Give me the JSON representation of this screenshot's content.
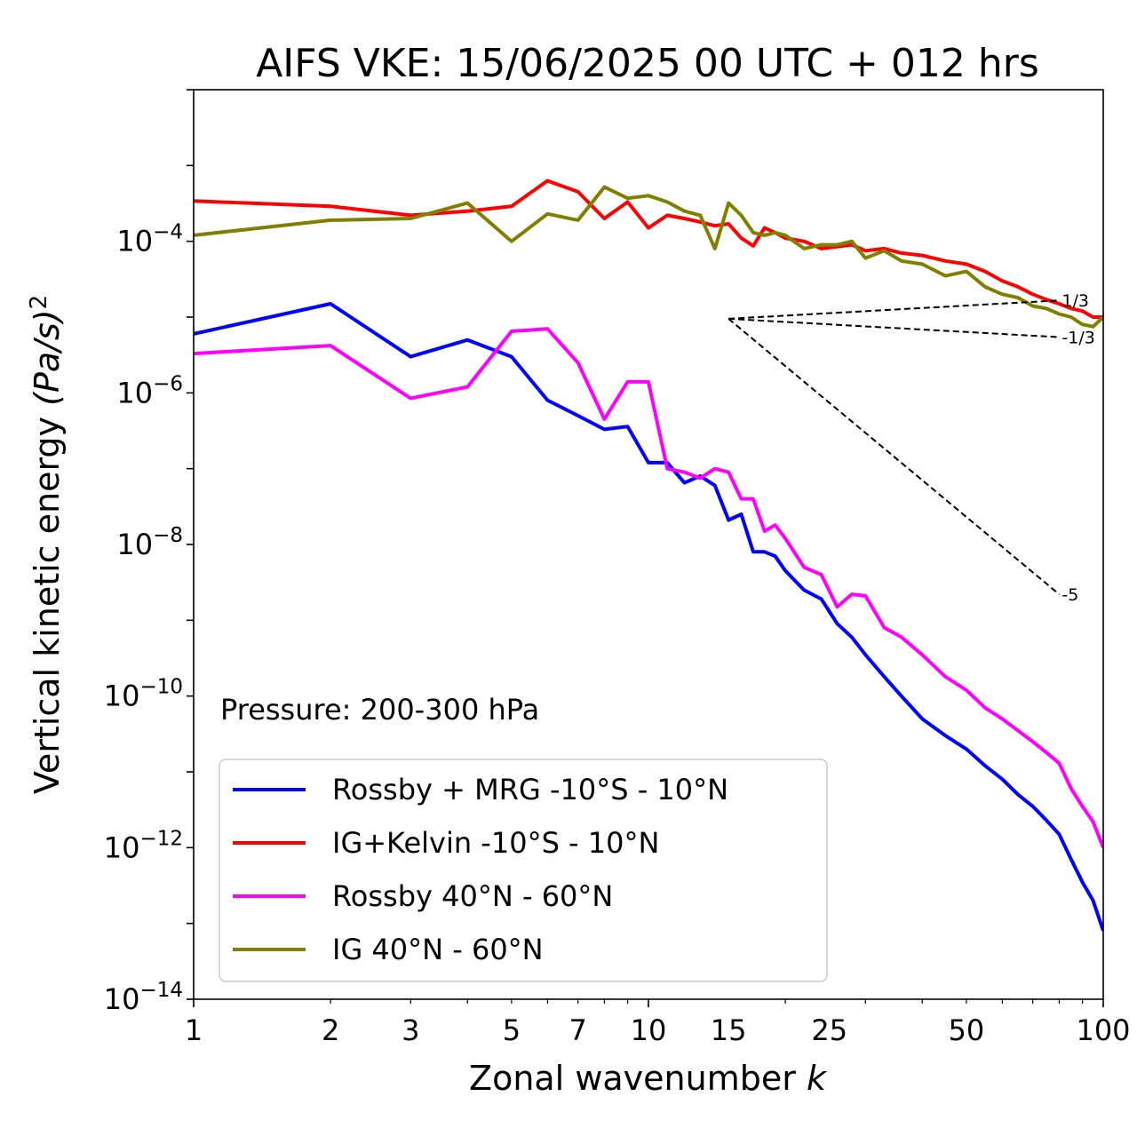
{
  "chart_data": {
    "type": "line",
    "title": "AIFS VKE: 15/06/2025 00 UTC + 012 hrs",
    "xlabel": "Zonal wavenumber",
    "xlabel_var": "k",
    "ylabel": "Vertical kinetic energy",
    "ylabel_unit": "(Pa/s)",
    "ylabel_unit_exp": "2",
    "xscale": "log",
    "yscale": "log",
    "xlim": [
      1,
      100
    ],
    "ylim": [
      1e-14,
      0.01
    ],
    "x_ticks": [
      1,
      2,
      3,
      5,
      7,
      10,
      15,
      25,
      50,
      100
    ],
    "x_tick_labels": [
      "1",
      "2",
      "3",
      "5",
      "7",
      "10",
      "15",
      "25",
      "50",
      "100"
    ],
    "y_ticks": [
      {
        "value": 0.0001,
        "base": "10",
        "exp": "−4"
      },
      {
        "value": 1e-06,
        "base": "10",
        "exp": "−6"
      },
      {
        "value": 1e-08,
        "base": "10",
        "exp": "−8"
      },
      {
        "value": 1e-10,
        "base": "10",
        "exp": "−10"
      },
      {
        "value": 1e-12,
        "base": "10",
        "exp": "−12"
      },
      {
        "value": 1e-14,
        "base": "10",
        "exp": "−14"
      }
    ],
    "annotation": "Pressure: 200-300 hPa",
    "legend_position": "lower-left",
    "reference_lines": [
      {
        "label": "1/3",
        "slope": 0.3333,
        "x0": 15,
        "y0": 9.5e-06,
        "x1": 80
      },
      {
        "label": "-1/3",
        "slope": -0.3333,
        "x0": 15,
        "y0": 9.5e-06,
        "x1": 80
      },
      {
        "label": "-5",
        "slope": -5,
        "x0": 15,
        "y0": 9.5e-06,
        "x1": 80
      }
    ],
    "series": [
      {
        "name": "Rossby + MRG -10°S - 10°N",
        "color": "#0000ff",
        "x": [
          1,
          2,
          3,
          4,
          5,
          6,
          7,
          8,
          9,
          10,
          11,
          12,
          13,
          14,
          15,
          16,
          17,
          18,
          19,
          20,
          22,
          24,
          26,
          28,
          30,
          33,
          36,
          40,
          45,
          50,
          55,
          60,
          65,
          70,
          75,
          80,
          85,
          90,
          95,
          100
        ],
        "y": [
          6e-06,
          1.5e-05,
          3e-06,
          5e-06,
          3e-06,
          8e-07,
          5e-07,
          3.3e-07,
          3.6e-07,
          1.2e-07,
          1.2e-07,
          6.5e-08,
          8e-08,
          6e-08,
          2.1e-08,
          2.5e-08,
          8e-09,
          8e-09,
          7e-09,
          4.5e-09,
          2.5e-09,
          1.9e-09,
          9e-10,
          6e-10,
          3.5e-10,
          1.8e-10,
          1e-10,
          5e-11,
          3e-11,
          2e-11,
          1.2e-11,
          8e-12,
          5e-12,
          3.5e-12,
          2.3e-12,
          1.5e-12,
          7e-13,
          3.5e-13,
          2e-13,
          8e-14
        ]
      },
      {
        "name": "IG+Kelvin -10°S - 10°N",
        "color": "#ff0000",
        "x": [
          1,
          2,
          3,
          4,
          5,
          6,
          7,
          8,
          9,
          10,
          11,
          12,
          13,
          14,
          15,
          16,
          17,
          18,
          19,
          20,
          22,
          24,
          26,
          28,
          30,
          33,
          36,
          40,
          45,
          50,
          55,
          60,
          65,
          70,
          75,
          80,
          85,
          90,
          95,
          100
        ],
        "y": [
          0.00034,
          0.00029,
          0.00022,
          0.00025,
          0.00029,
          0.00063,
          0.00045,
          0.0002,
          0.00033,
          0.00015,
          0.00022,
          0.0002,
          0.00018,
          0.00016,
          0.00017,
          0.00011,
          8.7e-05,
          0.00015,
          0.00013,
          0.00011,
          0.0001,
          8e-05,
          8.5e-05,
          9e-05,
          7.5e-05,
          8e-05,
          7e-05,
          6.5e-05,
          5.5e-05,
          5e-05,
          4e-05,
          3e-05,
          2.5e-05,
          2e-05,
          1.7e-05,
          1.5e-05,
          1.3e-05,
          1.2e-05,
          1e-05,
          1e-05
        ]
      },
      {
        "name": "Rossby 40°N - 60°N",
        "color": "#ff00ff",
        "x": [
          1,
          2,
          3,
          4,
          5,
          6,
          7,
          8,
          9,
          10,
          11,
          12,
          13,
          14,
          15,
          16,
          17,
          18,
          19,
          20,
          22,
          24,
          26,
          28,
          30,
          33,
          36,
          40,
          45,
          50,
          55,
          60,
          65,
          70,
          75,
          80,
          85,
          90,
          95,
          100
        ],
        "y": [
          3.3e-06,
          4.2e-06,
          8.5e-07,
          1.2e-06,
          6.5e-06,
          7e-06,
          2.5e-06,
          4.5e-07,
          1.4e-06,
          1.4e-06,
          1e-07,
          9e-08,
          7.5e-08,
          1e-07,
          9e-08,
          4e-08,
          4e-08,
          1.5e-08,
          1.8e-08,
          1.2e-08,
          5e-09,
          4e-09,
          1.5e-09,
          2.2e-09,
          2.1e-09,
          8e-10,
          6e-10,
          3.5e-10,
          1.8e-10,
          1.2e-10,
          7e-11,
          5e-11,
          3.5e-11,
          2.5e-11,
          1.8e-11,
          1.3e-11,
          6e-12,
          3.5e-12,
          2.2e-12,
          1e-12
        ]
      },
      {
        "name": "IG 40°N - 60°N",
        "color": "#808000",
        "x": [
          1,
          2,
          3,
          4,
          5,
          6,
          7,
          8,
          9,
          10,
          11,
          12,
          13,
          14,
          15,
          16,
          17,
          18,
          19,
          20,
          22,
          24,
          26,
          28,
          30,
          33,
          36,
          40,
          45,
          50,
          55,
          60,
          65,
          70,
          75,
          80,
          85,
          90,
          95,
          100
        ],
        "y": [
          0.00012,
          0.00019,
          0.0002,
          0.00032,
          0.0001,
          0.00023,
          0.00019,
          0.00052,
          0.00037,
          0.0004,
          0.00033,
          0.00025,
          0.00022,
          8e-05,
          0.00032,
          0.00022,
          0.00013,
          0.00012,
          0.00013,
          0.00012,
          8e-05,
          9e-05,
          9e-05,
          0.0001,
          6e-05,
          7.5e-05,
          5.5e-05,
          5e-05,
          3.5e-05,
          4e-05,
          2.5e-05,
          2e-05,
          1.8e-05,
          1.4e-05,
          1.3e-05,
          1.1e-05,
          1e-05,
          8e-06,
          7.5e-06,
          1e-05
        ]
      }
    ]
  }
}
